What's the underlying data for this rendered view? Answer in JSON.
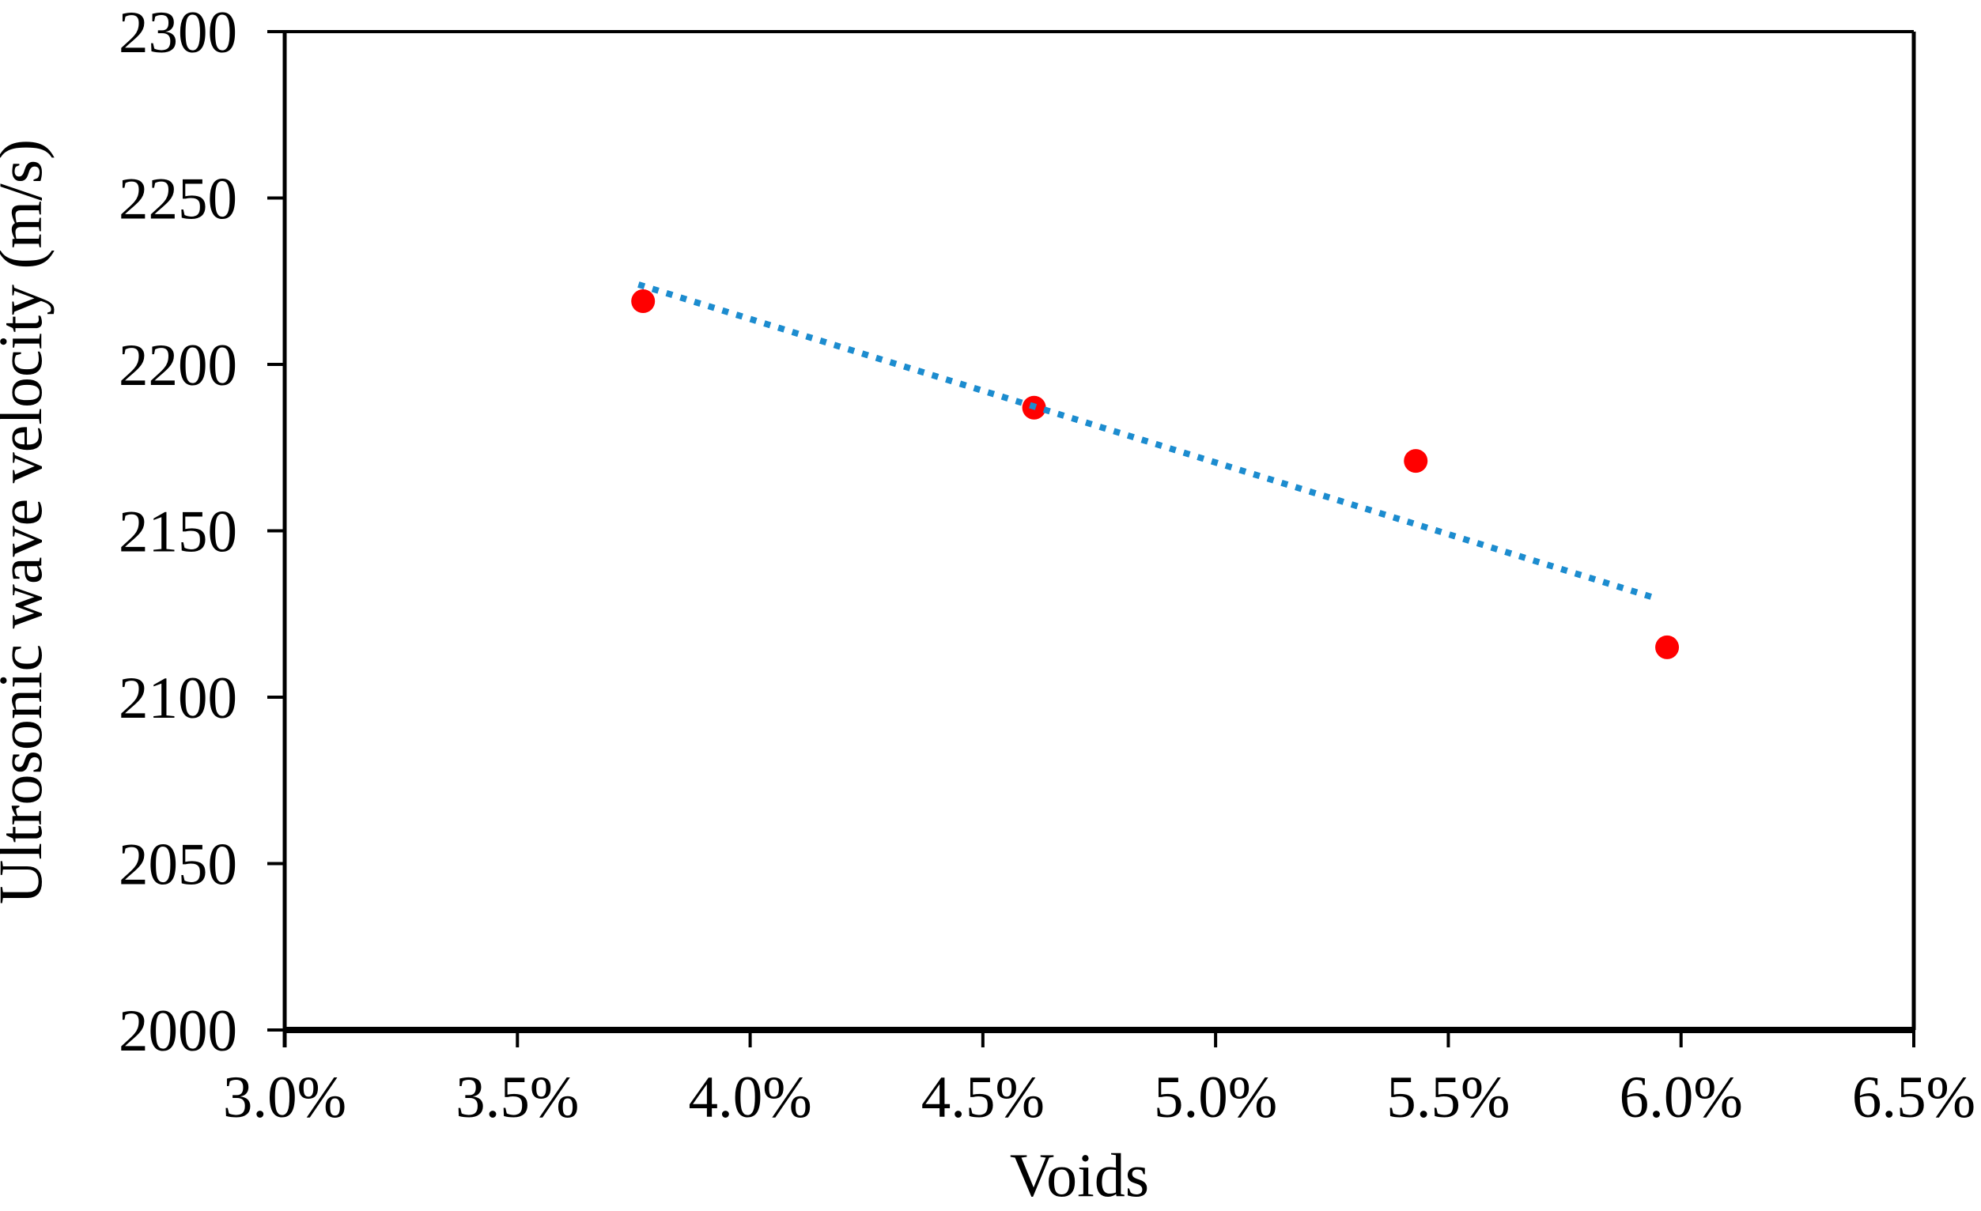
{
  "figure": {
    "background": "#FFFFFF",
    "axis_color": "#000000",
    "text_color": "#000000"
  },
  "chart_data": {
    "type": "scatter",
    "xlabel": "Voids",
    "ylabel": "Ultrosonic wave velocity (m/s)",
    "xlim": [
      3.0,
      6.5
    ],
    "ylim": [
      2000,
      2300
    ],
    "x_ticks": [
      3.0,
      3.5,
      4.0,
      4.5,
      5.0,
      5.5,
      6.0,
      6.5
    ],
    "x_tick_labels": [
      "3.0%",
      "3.5%",
      "4.0%",
      "4.5%",
      "5.0%",
      "5.5%",
      "6.0%",
      "6.5%"
    ],
    "y_ticks": [
      2000,
      2050,
      2100,
      2150,
      2200,
      2250,
      2300
    ],
    "y_tick_labels": [
      "2000",
      "2050",
      "2100",
      "2150",
      "2200",
      "2250",
      "2300"
    ],
    "grid": false,
    "legend": false,
    "series": [
      {
        "type": "scatter",
        "marker": "circle",
        "marker_color": "#FF0000",
        "marker_radius_px": 15,
        "points": [
          {
            "x": 3.77,
            "y": 2219
          },
          {
            "x": 4.61,
            "y": 2187
          },
          {
            "x": 5.43,
            "y": 2171
          },
          {
            "x": 5.97,
            "y": 2115
          }
        ]
      }
    ],
    "trendline": {
      "style": "dotted",
      "color": "#1C8CCF",
      "x_start": 3.76,
      "y_start": 2224,
      "x_end": 5.94,
      "y_end": 2130
    }
  }
}
